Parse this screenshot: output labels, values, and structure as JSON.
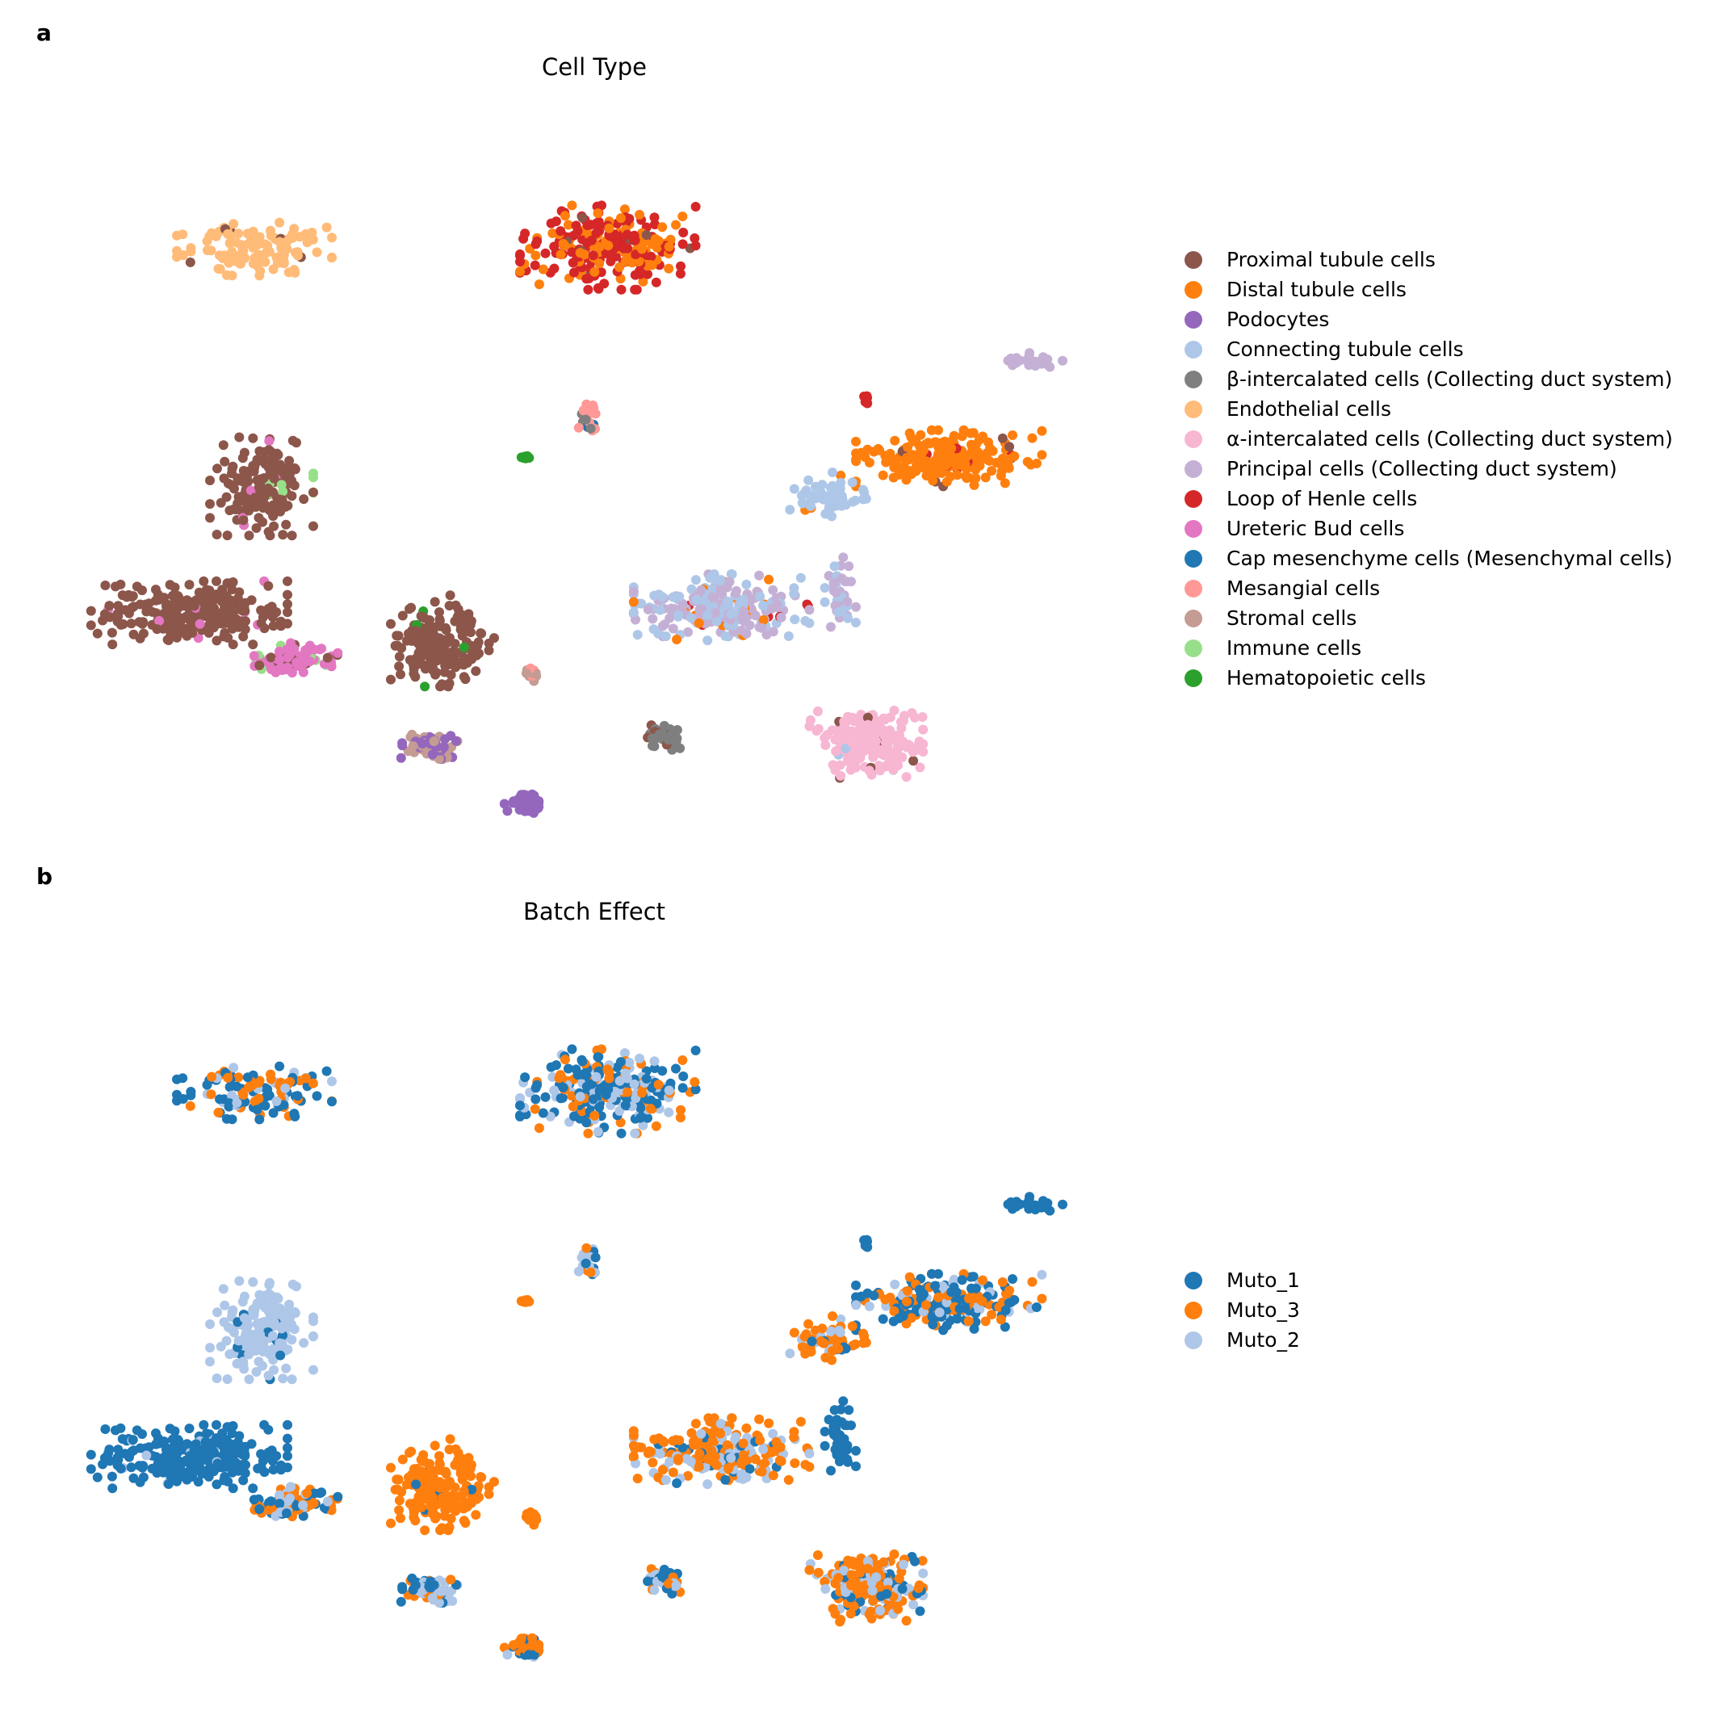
{
  "panels": [
    {
      "letter": "a",
      "title": "Cell Type"
    },
    {
      "letter": "b",
      "title": "Batch Effect"
    }
  ],
  "chart_data": [
    {
      "type": "scatter",
      "title": "Cell Type",
      "xlabel": "",
      "ylabel": "",
      "axes_visible": false,
      "legend_position": "right",
      "series": [
        {
          "name": "Proximal tubule cells",
          "color": "#8c564b"
        },
        {
          "name": "Distal tubule cells",
          "color": "#ff7f0e"
        },
        {
          "name": "Podocytes",
          "color": "#9467bd"
        },
        {
          "name": "Connecting tubule cells",
          "color": "#aec7e8"
        },
        {
          "name": "β-intercalated cells (Collecting duct system)",
          "color": "#7f7f7f"
        },
        {
          "name": "Endothelial cells",
          "color": "#ffbb78"
        },
        {
          "name": "α-intercalated cells (Collecting duct system)",
          "color": "#f7b6d2"
        },
        {
          "name": "Principal cells (Collecting duct system)",
          "color": "#c5b0d5"
        },
        {
          "name": "Loop of Henle cells",
          "color": "#d62728"
        },
        {
          "name": "Ureteric Bud cells",
          "color": "#e377c2"
        },
        {
          "name": "Cap mesenchyme cells (Mesenchymal cells)",
          "color": "#1f77b4"
        },
        {
          "name": "Mesangial cells",
          "color": "#ff9896"
        },
        {
          "name": "Stromal cells",
          "color": "#c49c94"
        },
        {
          "name": "Immune cells",
          "color": "#98df8a"
        },
        {
          "name": "Hematopoietic cells",
          "color": "#2ca02c"
        }
      ],
      "clusters": [
        {
          "x": 0.105,
          "y": 0.3,
          "rx": 0.095,
          "ry": 0.045,
          "n": 260,
          "mix": [
            [
              "Proximal tubule cells",
              0.96
            ],
            [
              "Ureteric Bud cells",
              0.04
            ]
          ]
        },
        {
          "x": 0.175,
          "y": 0.48,
          "rx": 0.05,
          "ry": 0.07,
          "n": 170,
          "mix": [
            [
              "Proximal tubule cells",
              0.94
            ],
            [
              "Immune cells",
              0.03
            ],
            [
              "Ureteric Bud cells",
              0.03
            ]
          ]
        },
        {
          "x": 0.168,
          "y": 0.82,
          "rx": 0.075,
          "ry": 0.04,
          "n": 120,
          "mix": [
            [
              "Endothelial cells",
              0.97
            ],
            [
              "Proximal tubule cells",
              0.03
            ]
          ]
        },
        {
          "x": 0.35,
          "y": 0.26,
          "rx": 0.05,
          "ry": 0.065,
          "n": 180,
          "mix": [
            [
              "Proximal tubule cells",
              0.97
            ],
            [
              "Hematopoietic cells",
              0.03
            ]
          ]
        },
        {
          "x": 0.205,
          "y": 0.235,
          "rx": 0.045,
          "ry": 0.022,
          "n": 90,
          "mix": [
            [
              "Ureteric Bud cells",
              0.75
            ],
            [
              "Immune cells",
              0.12
            ],
            [
              "Proximal tubule cells",
              0.13
            ]
          ]
        },
        {
          "x": 0.51,
          "y": 0.82,
          "rx": 0.085,
          "ry": 0.06,
          "n": 240,
          "mix": [
            [
              "Loop of Henle cells",
              0.55
            ],
            [
              "Distal tubule cells",
              0.42
            ],
            [
              "Proximal tubule cells",
              0.03
            ]
          ]
        },
        {
          "x": 0.84,
          "y": 0.52,
          "rx": 0.09,
          "ry": 0.04,
          "n": 200,
          "mix": [
            [
              "Distal tubule cells",
              0.92
            ],
            [
              "Loop of Henle cells",
              0.03
            ],
            [
              "Proximal tubule cells",
              0.05
            ]
          ]
        },
        {
          "x": 0.72,
          "y": 0.465,
          "rx": 0.04,
          "ry": 0.035,
          "n": 60,
          "mix": [
            [
              "Connecting tubule cells",
              0.9
            ],
            [
              "Distal tubule cells",
              0.1
            ]
          ]
        },
        {
          "x": 0.62,
          "y": 0.305,
          "rx": 0.085,
          "ry": 0.05,
          "n": 230,
          "mix": [
            [
              "Connecting tubule cells",
              0.45
            ],
            [
              "Principal cells (Collecting duct system)",
              0.45
            ],
            [
              "Loop of Henle cells",
              0.05
            ],
            [
              "Distal tubule cells",
              0.05
            ]
          ]
        },
        {
          "x": 0.735,
          "y": 0.33,
          "rx": 0.015,
          "ry": 0.05,
          "n": 40,
          "mix": [
            [
              "Principal cells (Collecting duct system)",
              0.6
            ],
            [
              "Connecting tubule cells",
              0.4
            ]
          ]
        },
        {
          "x": 0.565,
          "y": 0.125,
          "rx": 0.02,
          "ry": 0.02,
          "n": 40,
          "mix": [
            [
              "β-intercalated cells (Collecting duct system)",
              0.85
            ],
            [
              "Proximal tubule cells",
              0.15
            ]
          ]
        },
        {
          "x": 0.76,
          "y": 0.115,
          "rx": 0.055,
          "ry": 0.05,
          "n": 200,
          "mix": [
            [
              "α-intercalated cells (Collecting duct system)",
              0.95
            ],
            [
              "Connecting tubule cells",
              0.03
            ],
            [
              "Proximal tubule cells",
              0.02
            ]
          ]
        },
        {
          "x": 0.34,
          "y": 0.11,
          "rx": 0.03,
          "ry": 0.018,
          "n": 70,
          "mix": [
            [
              "Stromal cells",
              0.5
            ],
            [
              "Podocytes",
              0.5
            ]
          ]
        },
        {
          "x": 0.43,
          "y": 0.03,
          "rx": 0.02,
          "ry": 0.015,
          "n": 50,
          "mix": [
            [
              "Podocytes",
              1.0
            ]
          ]
        },
        {
          "x": 0.435,
          "y": 0.21,
          "rx": 0.008,
          "ry": 0.012,
          "n": 12,
          "mix": [
            [
              "Stromal cells",
              0.6
            ],
            [
              "Mesangial cells",
              0.4
            ]
          ]
        },
        {
          "x": 0.49,
          "y": 0.575,
          "rx": 0.01,
          "ry": 0.022,
          "n": 20,
          "mix": [
            [
              "Mesangial cells",
              0.6
            ],
            [
              "β-intercalated cells (Collecting duct system)",
              0.2
            ],
            [
              "Cap mesenchyme cells (Mesenchymal cells)",
              0.2
            ]
          ]
        },
        {
          "x": 0.43,
          "y": 0.52,
          "rx": 0.004,
          "ry": 0.005,
          "n": 6,
          "mix": [
            [
              "Hematopoietic cells",
              1.0
            ]
          ]
        },
        {
          "x": 0.915,
          "y": 0.66,
          "rx": 0.035,
          "ry": 0.01,
          "n": 25,
          "mix": [
            [
              "Principal cells (Collecting duct system)",
              1.0
            ]
          ]
        },
        {
          "x": 0.76,
          "y": 0.6,
          "rx": 0.003,
          "ry": 0.012,
          "n": 6,
          "mix": [
            [
              "Loop of Henle cells",
              1.0
            ]
          ]
        }
      ]
    },
    {
      "type": "scatter",
      "title": "Batch Effect",
      "xlabel": "",
      "ylabel": "",
      "axes_visible": false,
      "legend_position": "right",
      "series": [
        {
          "name": "Muto_1",
          "color": "#1f77b4"
        },
        {
          "name": "Muto_3",
          "color": "#ff7f0e"
        },
        {
          "name": "Muto_2",
          "color": "#aec7e8"
        }
      ],
      "clusters": [
        {
          "x": 0.105,
          "y": 0.3,
          "rx": 0.095,
          "ry": 0.045,
          "n": 260,
          "mix": [
            [
              "Muto_1",
              0.96
            ],
            [
              "Muto_2",
              0.04
            ]
          ]
        },
        {
          "x": 0.175,
          "y": 0.48,
          "rx": 0.05,
          "ry": 0.07,
          "n": 170,
          "mix": [
            [
              "Muto_2",
              0.93
            ],
            [
              "Muto_1",
              0.07
            ]
          ]
        },
        {
          "x": 0.168,
          "y": 0.82,
          "rx": 0.075,
          "ry": 0.04,
          "n": 120,
          "mix": [
            [
              "Muto_1",
              0.45
            ],
            [
              "Muto_3",
              0.4
            ],
            [
              "Muto_2",
              0.15
            ]
          ]
        },
        {
          "x": 0.35,
          "y": 0.26,
          "rx": 0.05,
          "ry": 0.065,
          "n": 180,
          "mix": [
            [
              "Muto_3",
              0.98
            ],
            [
              "Muto_1",
              0.02
            ]
          ]
        },
        {
          "x": 0.205,
          "y": 0.235,
          "rx": 0.045,
          "ry": 0.022,
          "n": 90,
          "mix": [
            [
              "Muto_1",
              0.45
            ],
            [
              "Muto_3",
              0.4
            ],
            [
              "Muto_2",
              0.15
            ]
          ]
        },
        {
          "x": 0.51,
          "y": 0.82,
          "rx": 0.085,
          "ry": 0.06,
          "n": 240,
          "mix": [
            [
              "Muto_1",
              0.5
            ],
            [
              "Muto_2",
              0.25
            ],
            [
              "Muto_3",
              0.25
            ]
          ]
        },
        {
          "x": 0.84,
          "y": 0.52,
          "rx": 0.09,
          "ry": 0.04,
          "n": 200,
          "mix": [
            [
              "Muto_1",
              0.45
            ],
            [
              "Muto_3",
              0.35
            ],
            [
              "Muto_2",
              0.2
            ]
          ]
        },
        {
          "x": 0.72,
          "y": 0.465,
          "rx": 0.04,
          "ry": 0.035,
          "n": 60,
          "mix": [
            [
              "Muto_3",
              0.6
            ],
            [
              "Muto_2",
              0.3
            ],
            [
              "Muto_1",
              0.1
            ]
          ]
        },
        {
          "x": 0.62,
          "y": 0.305,
          "rx": 0.085,
          "ry": 0.05,
          "n": 230,
          "mix": [
            [
              "Muto_3",
              0.6
            ],
            [
              "Muto_2",
              0.3
            ],
            [
              "Muto_1",
              0.1
            ]
          ]
        },
        {
          "x": 0.735,
          "y": 0.33,
          "rx": 0.015,
          "ry": 0.05,
          "n": 40,
          "mix": [
            [
              "Muto_1",
              1.0
            ]
          ]
        },
        {
          "x": 0.565,
          "y": 0.125,
          "rx": 0.02,
          "ry": 0.02,
          "n": 40,
          "mix": [
            [
              "Muto_1",
              0.5
            ],
            [
              "Muto_3",
              0.3
            ],
            [
              "Muto_2",
              0.2
            ]
          ]
        },
        {
          "x": 0.76,
          "y": 0.115,
          "rx": 0.055,
          "ry": 0.05,
          "n": 200,
          "mix": [
            [
              "Muto_3",
              0.6
            ],
            [
              "Muto_2",
              0.25
            ],
            [
              "Muto_1",
              0.15
            ]
          ]
        },
        {
          "x": 0.34,
          "y": 0.11,
          "rx": 0.03,
          "ry": 0.018,
          "n": 70,
          "mix": [
            [
              "Muto_1",
              0.4
            ],
            [
              "Muto_2",
              0.35
            ],
            [
              "Muto_3",
              0.25
            ]
          ]
        },
        {
          "x": 0.43,
          "y": 0.03,
          "rx": 0.02,
          "ry": 0.015,
          "n": 50,
          "mix": [
            [
              "Muto_3",
              0.6
            ],
            [
              "Muto_1",
              0.3
            ],
            [
              "Muto_2",
              0.1
            ]
          ]
        },
        {
          "x": 0.435,
          "y": 0.21,
          "rx": 0.008,
          "ry": 0.012,
          "n": 12,
          "mix": [
            [
              "Muto_3",
              1.0
            ]
          ]
        },
        {
          "x": 0.49,
          "y": 0.575,
          "rx": 0.01,
          "ry": 0.022,
          "n": 20,
          "mix": [
            [
              "Muto_2",
              0.5
            ],
            [
              "Muto_1",
              0.3
            ],
            [
              "Muto_3",
              0.2
            ]
          ]
        },
        {
          "x": 0.43,
          "y": 0.52,
          "rx": 0.004,
          "ry": 0.005,
          "n": 6,
          "mix": [
            [
              "Muto_3",
              1.0
            ]
          ]
        },
        {
          "x": 0.915,
          "y": 0.66,
          "rx": 0.035,
          "ry": 0.01,
          "n": 25,
          "mix": [
            [
              "Muto_1",
              1.0
            ]
          ]
        },
        {
          "x": 0.76,
          "y": 0.6,
          "rx": 0.003,
          "ry": 0.012,
          "n": 6,
          "mix": [
            [
              "Muto_1",
              1.0
            ]
          ]
        }
      ]
    }
  ]
}
